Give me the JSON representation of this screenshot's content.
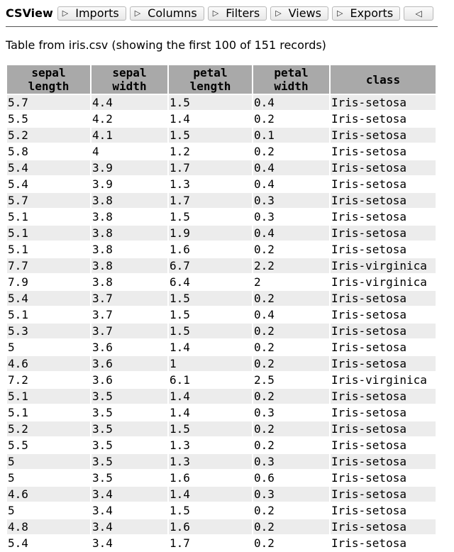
{
  "toolbar": {
    "app_title": "CSView",
    "menus": [
      {
        "label": "Imports"
      },
      {
        "label": "Columns"
      },
      {
        "label": "Filters"
      },
      {
        "label": "Views"
      },
      {
        "label": "Exports"
      }
    ],
    "collapse_icon": "collapse-left-triangle"
  },
  "caption": "Table from iris.csv (showing the first 100 of 151 records)",
  "table": {
    "headers": [
      {
        "line1": "sepal",
        "line2": "length"
      },
      {
        "line1": "sepal",
        "line2": "width"
      },
      {
        "line1": "petal",
        "line2": "length"
      },
      {
        "line1": "petal",
        "line2": "width"
      },
      {
        "line1": "class",
        "line2": ""
      }
    ],
    "rows": [
      [
        "5.7",
        "4.4",
        "1.5",
        "0.4",
        "Iris-setosa"
      ],
      [
        "5.5",
        "4.2",
        "1.4",
        "0.2",
        "Iris-setosa"
      ],
      [
        "5.2",
        "4.1",
        "1.5",
        "0.1",
        "Iris-setosa"
      ],
      [
        "5.8",
        "4",
        "1.2",
        "0.2",
        "Iris-setosa"
      ],
      [
        "5.4",
        "3.9",
        "1.7",
        "0.4",
        "Iris-setosa"
      ],
      [
        "5.4",
        "3.9",
        "1.3",
        "0.4",
        "Iris-setosa"
      ],
      [
        "5.7",
        "3.8",
        "1.7",
        "0.3",
        "Iris-setosa"
      ],
      [
        "5.1",
        "3.8",
        "1.5",
        "0.3",
        "Iris-setosa"
      ],
      [
        "5.1",
        "3.8",
        "1.9",
        "0.4",
        "Iris-setosa"
      ],
      [
        "5.1",
        "3.8",
        "1.6",
        "0.2",
        "Iris-setosa"
      ],
      [
        "7.7",
        "3.8",
        "6.7",
        "2.2",
        "Iris-virginica"
      ],
      [
        "7.9",
        "3.8",
        "6.4",
        "2",
        "Iris-virginica"
      ],
      [
        "5.4",
        "3.7",
        "1.5",
        "0.2",
        "Iris-setosa"
      ],
      [
        "5.1",
        "3.7",
        "1.5",
        "0.4",
        "Iris-setosa"
      ],
      [
        "5.3",
        "3.7",
        "1.5",
        "0.2",
        "Iris-setosa"
      ],
      [
        "5",
        "3.6",
        "1.4",
        "0.2",
        "Iris-setosa"
      ],
      [
        "4.6",
        "3.6",
        "1",
        "0.2",
        "Iris-setosa"
      ],
      [
        "7.2",
        "3.6",
        "6.1",
        "2.5",
        "Iris-virginica"
      ],
      [
        "5.1",
        "3.5",
        "1.4",
        "0.2",
        "Iris-setosa"
      ],
      [
        "5.1",
        "3.5",
        "1.4",
        "0.3",
        "Iris-setosa"
      ],
      [
        "5.2",
        "3.5",
        "1.5",
        "0.2",
        "Iris-setosa"
      ],
      [
        "5.5",
        "3.5",
        "1.3",
        "0.2",
        "Iris-setosa"
      ],
      [
        "5",
        "3.5",
        "1.3",
        "0.3",
        "Iris-setosa"
      ],
      [
        "5",
        "3.5",
        "1.6",
        "0.6",
        "Iris-setosa"
      ],
      [
        "4.6",
        "3.4",
        "1.4",
        "0.3",
        "Iris-setosa"
      ],
      [
        "5",
        "3.4",
        "1.5",
        "0.2",
        "Iris-setosa"
      ],
      [
        "4.8",
        "3.4",
        "1.6",
        "0.2",
        "Iris-setosa"
      ],
      [
        "5.4",
        "3.4",
        "1.7",
        "0.2",
        "Iris-setosa"
      ]
    ]
  }
}
